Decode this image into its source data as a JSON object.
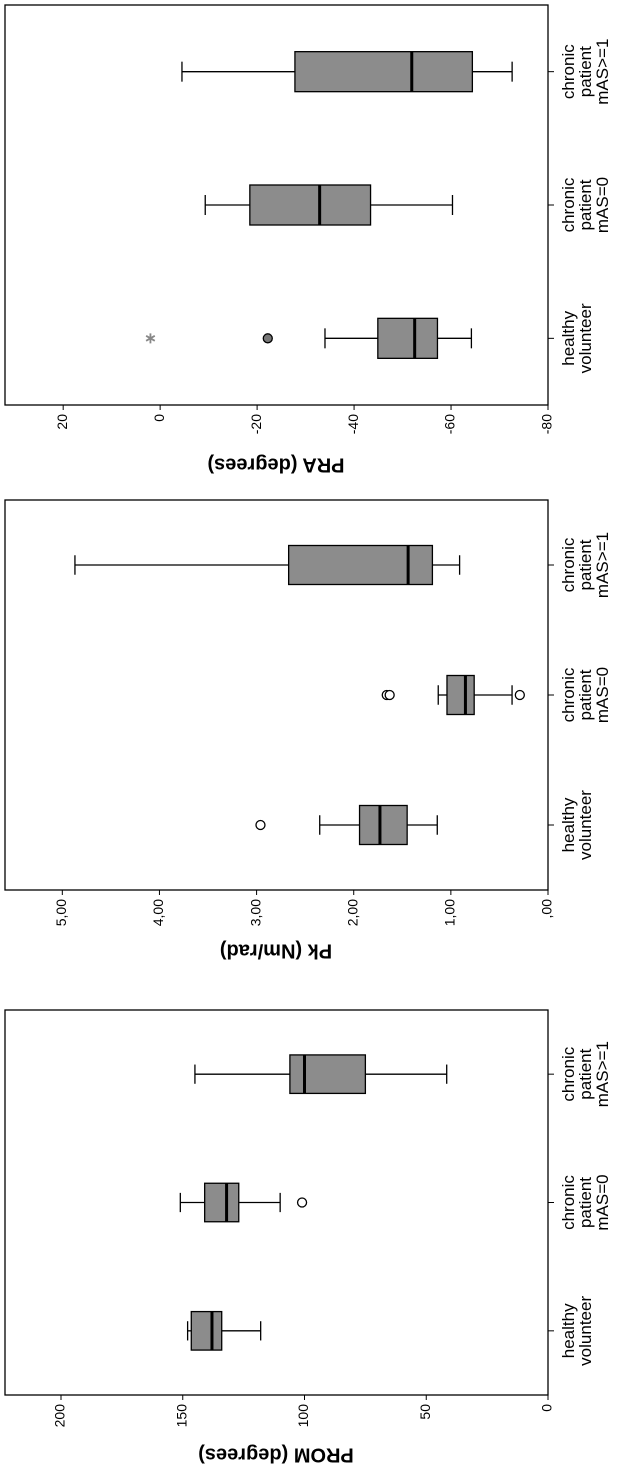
{
  "chart_data": [
    {
      "type": "box",
      "ylabel": "PROM (degrees)",
      "categories": [
        "healthy volunteer",
        "chronic patient mAS=0",
        "chronic patient mAS>=1"
      ],
      "color": "#8c8c8c",
      "ylim": [
        0,
        223
      ],
      "yticks": [
        0,
        50,
        100,
        150,
        200
      ],
      "boxes": [
        {
          "min": 118,
          "q1": 134,
          "median": 138,
          "q3": 146.5,
          "max": 148
        },
        {
          "min": 110,
          "q1": 127,
          "median": 132,
          "q3": 141,
          "max": 151,
          "outliers": [
            101
          ]
        },
        {
          "min": 41.6,
          "q1": 75,
          "median": 100,
          "q3": 106,
          "max": 145
        }
      ]
    },
    {
      "type": "box",
      "ylabel": "Pk (Nm/rad)",
      "categories": [
        "healthy volunteer",
        "chronic patient mAS=0",
        "chronic patient mAS>=1"
      ],
      "color": "#8c8c8c",
      "ylim": [
        0,
        5.59
      ],
      "yticks": [
        {
          "value": 0,
          "label": ",00"
        },
        {
          "value": 1,
          "label": "1,00"
        },
        {
          "value": 2,
          "label": "2,00"
        },
        {
          "value": 3,
          "label": "3,00"
        },
        {
          "value": 4,
          "label": "4,00"
        },
        {
          "value": 5,
          "label": "5,00"
        }
      ],
      "boxes": [
        {
          "min": 1.14,
          "q1": 1.45,
          "median": 1.73,
          "q3": 1.94,
          "max": 2.35,
          "outliers": [
            2.96
          ]
        },
        {
          "min": 0.37,
          "q1": 0.76,
          "median": 0.85,
          "q3": 1.04,
          "max": 1.13,
          "outliers": [
            1.66,
            1.63,
            0.29
          ]
        },
        {
          "min": 0.91,
          "q1": 1.19,
          "median": 1.44,
          "q3": 2.67,
          "max": 4.87
        }
      ]
    },
    {
      "type": "box",
      "ylabel": "PRA (degrees)",
      "categories": [
        "healthy volunteer",
        "chronic patient mAS=0",
        "chronic patient mAS>=1"
      ],
      "color": "#8c8c8c",
      "ylim": [
        -80,
        32
      ],
      "yticks": [
        -80,
        -60,
        -40,
        -20,
        0,
        20
      ],
      "boxes": [
        {
          "min": -64.2,
          "q1": -57.2,
          "median": -52.5,
          "q3": -44.9,
          "max": -34,
          "outliers": [
            -22.2
          ],
          "extremes": [
            2
          ]
        },
        {
          "min": -60.3,
          "q1": -43.4,
          "median": -32.9,
          "q3": -18.5,
          "max": -9.3
        },
        {
          "min": -72.6,
          "q1": -64.4,
          "median": -51.9,
          "q3": -27.8,
          "max": -4.5
        }
      ]
    }
  ]
}
